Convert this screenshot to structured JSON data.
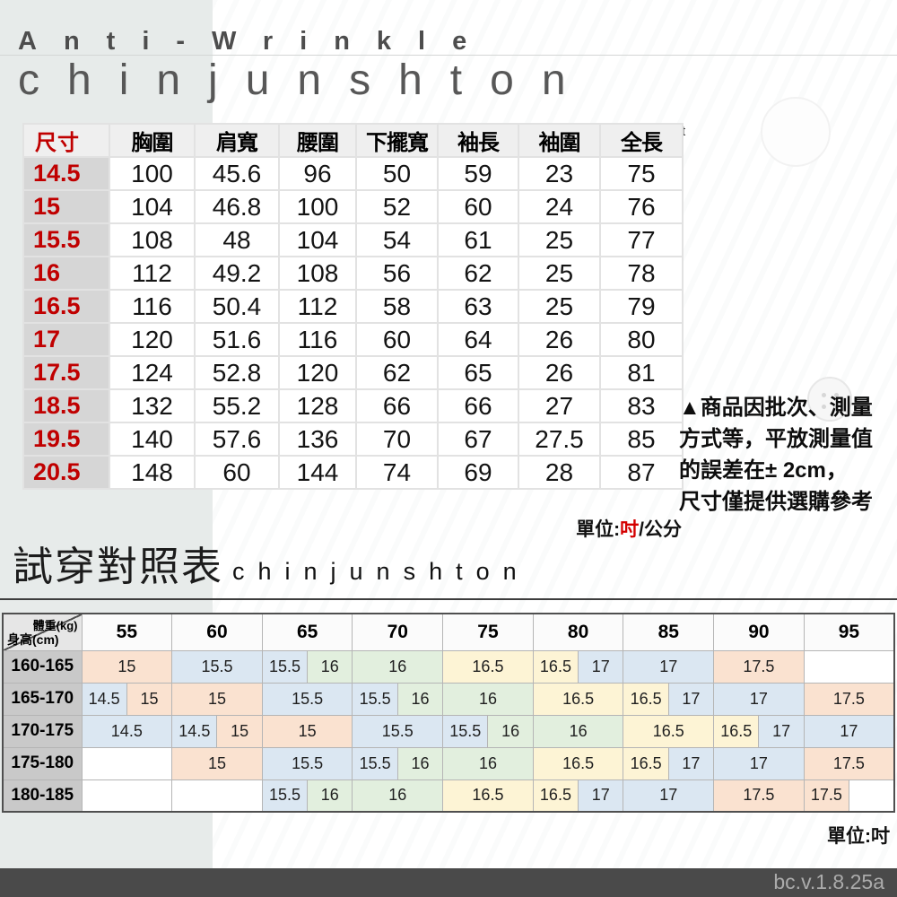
{
  "header": {
    "subtitle": "Anti-Wrinkle",
    "title": "chinjunshton",
    "stray": "t"
  },
  "size_table": {
    "columns": [
      "尺寸",
      "胸圍",
      "肩寬",
      "腰圍",
      "下擺寬",
      "袖長",
      "袖圍",
      "全長"
    ],
    "rows": [
      {
        "size": "14.5",
        "values": [
          "100",
          "45.6",
          "96",
          "50",
          "59",
          "23",
          "75"
        ]
      },
      {
        "size": "15",
        "values": [
          "104",
          "46.8",
          "100",
          "52",
          "60",
          "24",
          "76"
        ]
      },
      {
        "size": "15.5",
        "values": [
          "108",
          "48",
          "104",
          "54",
          "61",
          "25",
          "77"
        ]
      },
      {
        "size": "16",
        "values": [
          "112",
          "49.2",
          "108",
          "56",
          "62",
          "25",
          "78"
        ]
      },
      {
        "size": "16.5",
        "values": [
          "116",
          "50.4",
          "112",
          "58",
          "63",
          "25",
          "79"
        ]
      },
      {
        "size": "17",
        "values": [
          "120",
          "51.6",
          "116",
          "60",
          "64",
          "26",
          "80"
        ]
      },
      {
        "size": "17.5",
        "values": [
          "124",
          "52.8",
          "120",
          "62",
          "65",
          "26",
          "81"
        ]
      },
      {
        "size": "18.5",
        "values": [
          "132",
          "55.2",
          "128",
          "66",
          "66",
          "27",
          "83"
        ]
      },
      {
        "size": "19.5",
        "values": [
          "140",
          "57.6",
          "136",
          "70",
          "67",
          "27.5",
          "85"
        ]
      },
      {
        "size": "20.5",
        "values": [
          "148",
          "60",
          "144",
          "74",
          "69",
          "28",
          "87"
        ]
      }
    ]
  },
  "note": {
    "text": "▲商品因批次、測量\n方式等，平放測量值\n的誤差在± 2cm，\n尺寸僅提供選購參考"
  },
  "unit_top": {
    "prefix": "單位:",
    "highlight": "吋",
    "suffix": "/公分"
  },
  "fit_header": {
    "title": "試穿對照表",
    "brand": "chinjunshton"
  },
  "fit_table": {
    "corner_top": "體重(kg)",
    "corner_bottom": "身高(cm)",
    "weights": [
      "55",
      "60",
      "65",
      "70",
      "75",
      "80",
      "85",
      "90",
      "95"
    ],
    "colors": {
      "pink": "#fae2d0",
      "blue": "#dbe7f2",
      "green": "#e2efde",
      "yellow": "#fdf4d5",
      "white": "#ffffff"
    },
    "rows": [
      {
        "height": "160-165",
        "cells": [
          {
            "t": "15",
            "c": "pink",
            "s": 2
          },
          {
            "t": "15.5",
            "c": "blue",
            "s": 2
          },
          {
            "t": "15.5",
            "c": "blue",
            "s": 1
          },
          {
            "t": "16",
            "c": "green",
            "s": 1
          },
          {
            "t": "16",
            "c": "green",
            "s": 2
          },
          {
            "t": "16.5",
            "c": "yellow",
            "s": 2
          },
          {
            "t": "16.5",
            "c": "yellow",
            "s": 1
          },
          {
            "t": "17",
            "c": "blue",
            "s": 1
          },
          {
            "t": "17",
            "c": "blue",
            "s": 2
          },
          {
            "t": "17.5",
            "c": "pink",
            "s": 2
          },
          {
            "t": "",
            "c": "white",
            "s": 2
          }
        ]
      },
      {
        "height": "165-170",
        "cells": [
          {
            "t": "14.5",
            "c": "blue",
            "s": 1
          },
          {
            "t": "15",
            "c": "pink",
            "s": 1
          },
          {
            "t": "15",
            "c": "pink",
            "s": 2
          },
          {
            "t": "15.5",
            "c": "blue",
            "s": 2
          },
          {
            "t": "15.5",
            "c": "blue",
            "s": 1
          },
          {
            "t": "16",
            "c": "green",
            "s": 1
          },
          {
            "t": "16",
            "c": "green",
            "s": 2
          },
          {
            "t": "16.5",
            "c": "yellow",
            "s": 2
          },
          {
            "t": "16.5",
            "c": "yellow",
            "s": 1
          },
          {
            "t": "17",
            "c": "blue",
            "s": 1
          },
          {
            "t": "17",
            "c": "blue",
            "s": 2
          },
          {
            "t": "17.5",
            "c": "pink",
            "s": 2
          }
        ]
      },
      {
        "height": "170-175",
        "cells": [
          {
            "t": "14.5",
            "c": "blue",
            "s": 2
          },
          {
            "t": "14.5",
            "c": "blue",
            "s": 1
          },
          {
            "t": "15",
            "c": "pink",
            "s": 1
          },
          {
            "t": "15",
            "c": "pink",
            "s": 2
          },
          {
            "t": "15.5",
            "c": "blue",
            "s": 2
          },
          {
            "t": "15.5",
            "c": "blue",
            "s": 1
          },
          {
            "t": "16",
            "c": "green",
            "s": 1
          },
          {
            "t": "16",
            "c": "green",
            "s": 2
          },
          {
            "t": "16.5",
            "c": "yellow",
            "s": 2
          },
          {
            "t": "16.5",
            "c": "yellow",
            "s": 1
          },
          {
            "t": "17",
            "c": "blue",
            "s": 1
          },
          {
            "t": "17",
            "c": "blue",
            "s": 2
          }
        ]
      },
      {
        "height": "175-180",
        "cells": [
          {
            "t": "",
            "c": "white",
            "s": 2
          },
          {
            "t": "15",
            "c": "pink",
            "s": 2
          },
          {
            "t": "15.5",
            "c": "blue",
            "s": 2
          },
          {
            "t": "15.5",
            "c": "blue",
            "s": 1
          },
          {
            "t": "16",
            "c": "green",
            "s": 1
          },
          {
            "t": "16",
            "c": "green",
            "s": 2
          },
          {
            "t": "16.5",
            "c": "yellow",
            "s": 2
          },
          {
            "t": "16.5",
            "c": "yellow",
            "s": 1
          },
          {
            "t": "17",
            "c": "blue",
            "s": 1
          },
          {
            "t": "17",
            "c": "blue",
            "s": 2
          },
          {
            "t": "17.5",
            "c": "pink",
            "s": 2
          }
        ]
      },
      {
        "height": "180-185",
        "cells": [
          {
            "t": "",
            "c": "white",
            "s": 2
          },
          {
            "t": "",
            "c": "white",
            "s": 2
          },
          {
            "t": "15.5",
            "c": "blue",
            "s": 1
          },
          {
            "t": "16",
            "c": "green",
            "s": 1
          },
          {
            "t": "16",
            "c": "green",
            "s": 2
          },
          {
            "t": "16.5",
            "c": "yellow",
            "s": 2
          },
          {
            "t": "16.5",
            "c": "yellow",
            "s": 1
          },
          {
            "t": "17",
            "c": "blue",
            "s": 1
          },
          {
            "t": "17",
            "c": "blue",
            "s": 2
          },
          {
            "t": "17.5",
            "c": "pink",
            "s": 2
          },
          {
            "t": "17.5",
            "c": "pink",
            "s": 1
          },
          {
            "t": "",
            "c": "white",
            "s": 1
          }
        ]
      }
    ]
  },
  "unit_bottom": "單位:吋",
  "footer": {
    "version": "bc.v.1.8.25a"
  }
}
